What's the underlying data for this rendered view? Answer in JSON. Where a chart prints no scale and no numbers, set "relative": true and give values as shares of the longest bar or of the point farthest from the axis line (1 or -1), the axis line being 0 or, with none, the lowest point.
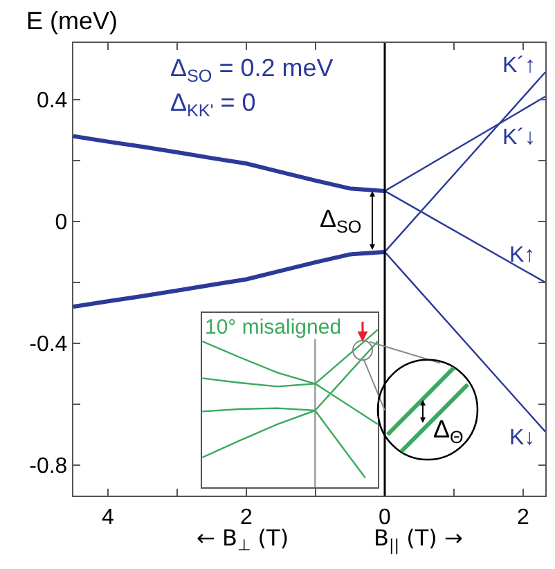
{
  "chart_data": [
    {
      "type": "line",
      "ylabel": "E (meV)",
      "annotations": [
        "Δ$_{SO}$ = 0.2 meV",
        "Δ$_{KK'}$ = 0",
        "Δ$_{SO}$",
        "← B$_{⊥}$ (T)",
        "B$_{||}$ (T) →",
        "Δ$_{Θ}$"
      ],
      "series": [
        {
          "color": "#2b3a9a",
          "x": [
            -4.5,
            -4,
            -3.5,
            -3,
            -2.5,
            -2,
            -1.5,
            -1,
            -0.5,
            0
          ],
          "values": [
            0.28,
            0.262,
            0.245,
            0.227,
            0.208,
            0.19,
            0.162,
            0.134,
            0.108,
            0.1
          ]
        },
        {
          "color": "#2b3a9a",
          "x": [
            -4.5,
            -4,
            -3.5,
            -3,
            -2.5,
            -2,
            -1.5,
            -1,
            -0.5,
            0
          ],
          "values": [
            -0.28,
            -0.262,
            -0.245,
            -0.227,
            -0.208,
            -0.19,
            -0.162,
            -0.134,
            -0.108,
            -0.1
          ]
        },
        {
          "name": "K´↑",
          "color": "#2b3a9a",
          "x": [
            0,
            2.32
          ],
          "values": [
            -0.1,
            0.49
          ]
        },
        {
          "name": "K´↓",
          "color": "#2b3a9a",
          "x": [
            0,
            2.32
          ],
          "values": [
            0.1,
            0.41
          ]
        },
        {
          "name": "K↑",
          "color": "#2b3a9a",
          "x": [
            0,
            2.32
          ],
          "values": [
            0.1,
            -0.2
          ]
        },
        {
          "name": "K↓",
          "color": "#2b3a9a",
          "x": [
            0,
            2.32
          ],
          "values": [
            -0.1,
            -0.69
          ]
        }
      ],
      "xlim": [
        -4.5,
        2.32
      ],
      "xticks": [
        {
          "value": -4,
          "label": "4"
        },
        {
          "value": -3,
          "label": null
        },
        {
          "value": -2,
          "label": "2"
        },
        {
          "value": -1,
          "label": null
        },
        {
          "value": 0,
          "label": "0"
        },
        {
          "value": 1,
          "label": null
        },
        {
          "value": 2,
          "label": "2"
        }
      ],
      "ylim": [
        -0.9,
        0.586
      ],
      "yticks": [
        -0.8,
        {
          "value": -0.6,
          "label": null
        },
        -0.4,
        {
          "value": -0.2,
          "label": null
        },
        0,
        {
          "value": 0.2,
          "label": null
        },
        0.4
      ],
      "ref_lines": [
        {
          "axis": "x",
          "value": 0,
          "color": "#000000"
        }
      ],
      "legend": false
    },
    {
      "type": "line",
      "relative": true,
      "categories": [
        null,
        null,
        null,
        null,
        null,
        null,
        null,
        null,
        null,
        null,
        null,
        null,
        null,
        null,
        null
      ],
      "annotations": [
        "10° misaligned"
      ],
      "series": [
        {
          "color": "#3aaa5c",
          "values": [
            0.927,
            null,
            null,
            0.825,
            null,
            null,
            0.728,
            null,
            null,
            0.658,
            null,
            null,
            null,
            null,
            1.0
          ]
        },
        {
          "color": "#3aaa5c",
          "values": [
            0.693,
            null,
            null,
            0.664,
            null,
            null,
            0.64,
            null,
            null,
            0.658,
            null,
            null,
            null,
            null,
            0.401
          ]
        },
        {
          "color": "#3aaa5c",
          "values": [
            0.482,
            null,
            null,
            0.497,
            null,
            null,
            0.503,
            null,
            null,
            0.488,
            null,
            null,
            null,
            null,
            0.927
          ]
        },
        {
          "color": "#3aaa5c",
          "values": [
            0.19,
            null,
            null,
            0.298,
            null,
            null,
            0.401,
            null,
            null,
            0.488,
            null,
            null,
            null,
            0.061,
            null
          ]
        }
      ],
      "legend": false
    }
  ]
}
